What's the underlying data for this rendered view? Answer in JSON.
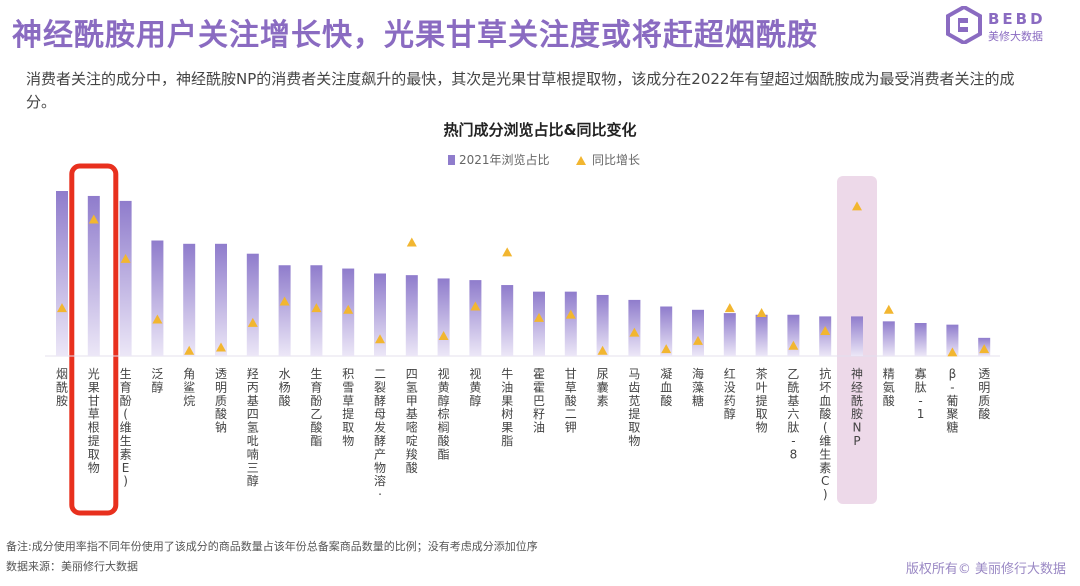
{
  "headline": "神经酰胺用户关注增长快，光果甘草关注度或将赶超烟酰胺",
  "logo": {
    "brand": "BEBD",
    "sub": "美修大数据",
    "color": "#8a6bc1"
  },
  "description": "消费者关注的成分中，神经酰胺NP的消费者关注度飙升的最快，其次是光果甘草根提取物，该成分在2022年有望超过烟酰胺成为最受消费者关注的成分。",
  "footer": {
    "note": "备注:成分使用率指不同年份使用了该成分的商品数量占该年份总备案商品数量的比例；没有考虑成分添加位序",
    "source": "数据来源：美丽修行大数据",
    "copyright": "版权所有© 美丽修行大数据"
  },
  "colors": {
    "bar_top": "#8f7ccc",
    "bar_bottom": "#ece7f7",
    "marker": "#f2b630",
    "highlight_red": "#e8301e",
    "highlight_pink": "#e7cce2",
    "title": "#8a6bc1"
  },
  "chart_data": {
    "type": "bar",
    "title": "热门成分浏览占比&同比变化",
    "legend": [
      "2021年浏览占比",
      "同比增长"
    ],
    "legend_position": "top-center",
    "axes_visible": false,
    "highlighted_categories": [
      "光果甘草根提取物",
      "神经酰胺NP"
    ],
    "categories": [
      "烟酰胺",
      "光果甘草根提取物",
      "生育酚(维生素E)",
      "泛醇",
      "角鲨烷",
      "透明质酸钠",
      "羟丙基四氢吡喃三醇",
      "水杨酸",
      "生育酚乙酸酯",
      "积雪草提取物",
      "二裂酵母发酵产物溶·",
      "四氢甲基嘧啶羧酸",
      "视黄醇棕榈酸酯",
      "视黄醇",
      "牛油果树果脂",
      "霍霍巴籽油",
      "甘草酸二钾",
      "尿囊素",
      "马齿苋提取物",
      "凝血酸",
      "海藻糖",
      "红没药醇",
      "茶叶提取物",
      "乙酰基六肽-8",
      "抗坏血酸(维生素C)",
      "神经酰胺NP",
      "精氨酸",
      "寡肽-1",
      "β-葡聚糖",
      "透明质酸"
    ],
    "series": [
      {
        "name": "2021年浏览占比",
        "values": [
          100,
          97,
          94,
          70,
          68,
          68,
          62,
          55,
          55,
          53,
          50,
          49,
          47,
          46,
          43,
          39,
          39,
          37,
          34,
          30,
          28,
          26,
          25,
          25,
          24,
          24,
          21,
          20,
          19,
          11
        ]
      },
      {
        "name": "同比增长",
        "values": [
          28,
          82,
          58,
          21,
          2,
          4,
          19,
          32,
          28,
          27,
          9,
          68,
          11,
          29,
          62,
          22,
          24,
          2,
          13,
          3,
          8,
          28,
          25,
          5,
          14,
          90,
          27,
          null,
          1,
          3
        ]
      }
    ]
  }
}
